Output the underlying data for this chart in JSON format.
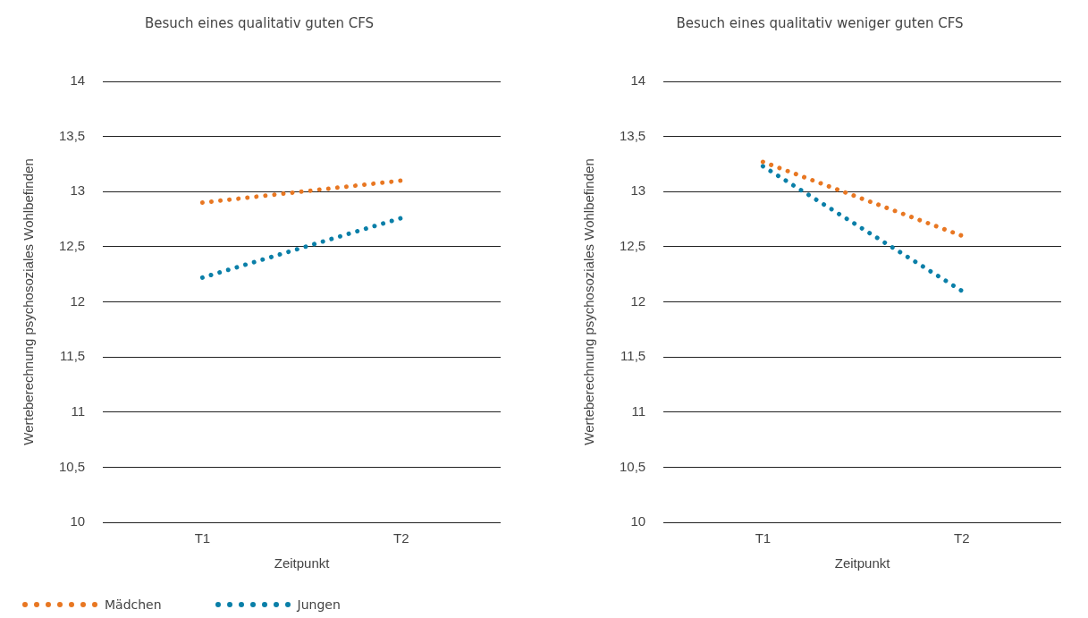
{
  "chart_data": [
    {
      "type": "line",
      "title": "Besuch eines qualitativ guten CFS",
      "xlabel": "Zeitpunkt",
      "ylabel": "Werteberechnung psychosoziales Wohlbefinden",
      "categories": [
        "T1",
        "T2"
      ],
      "series": [
        {
          "name": "Mädchen",
          "color": "#e87722",
          "values": [
            12.9,
            13.1
          ]
        },
        {
          "name": "Jungen",
          "color": "#0a7fa8",
          "values": [
            12.22,
            12.76
          ]
        }
      ],
      "ylim": [
        10,
        14
      ],
      "yticks": [
        10,
        {
          "value": 10.5,
          "label": "10,5"
        },
        11,
        {
          "value": 11.5,
          "label": "11,5"
        },
        12,
        {
          "value": 12.5,
          "label": "12,5"
        },
        13,
        {
          "value": 13.5,
          "label": "13,5"
        },
        14
      ],
      "grid": "y",
      "legend": "bottom",
      "line_style": "dotted",
      "marker": "none"
    },
    {
      "type": "line",
      "title": "Besuch eines qualitativ weniger guten CFS",
      "xlabel": "Zeitpunkt",
      "ylabel": "Werteberechnung psychosoziales Wohlbefinden",
      "categories": [
        "T1",
        "T2"
      ],
      "series": [
        {
          "color": "#e87722",
          "values": [
            13.27,
            12.6
          ]
        },
        {
          "color": "#0a7fa8",
          "values": [
            13.23,
            12.1
          ]
        }
      ],
      "ylim": [
        10,
        14
      ],
      "yticks": [
        10,
        {
          "value": 10.5,
          "label": "10,5"
        },
        11,
        {
          "value": 11.5,
          "label": "11,5"
        },
        12,
        {
          "value": 12.5,
          "label": "12,5"
        },
        13,
        {
          "value": 13.5,
          "label": "13,5"
        },
        14
      ],
      "grid": "y",
      "legend": false,
      "line_style": "dotted",
      "marker": "none"
    }
  ]
}
